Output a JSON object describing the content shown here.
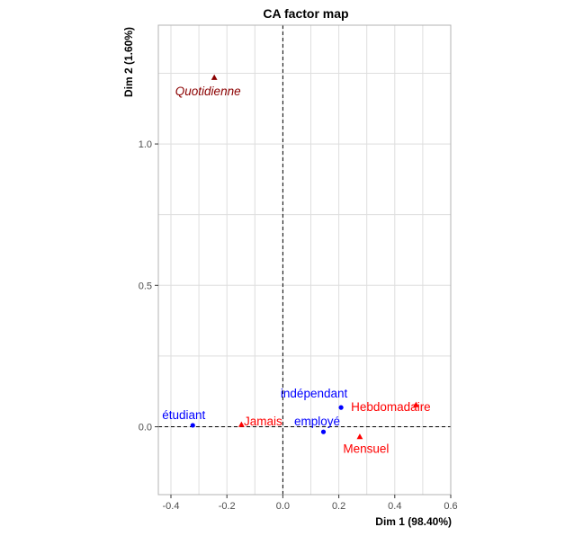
{
  "chart_data": {
    "type": "scatter",
    "title": "CA factor map",
    "xlabel": "Dim 1 (98.40%)",
    "ylabel": "Dim 2 (1.60%)",
    "xlim": [
      -0.445,
      0.6
    ],
    "ylim": [
      -0.24,
      1.42
    ],
    "x_ticks": [
      -0.4,
      -0.2,
      0.0,
      0.2,
      0.4,
      0.6
    ],
    "x_tick_labels": [
      "-0.4",
      "-0.2",
      "0.0",
      "0.2",
      "0.4",
      "0.6"
    ],
    "y_ticks": [
      0.0,
      0.5,
      1.0
    ],
    "y_tick_labels": [
      "0.0",
      "0.5",
      "1.0"
    ],
    "grid": true,
    "reference_lines": {
      "x": 0,
      "y": 0,
      "style": "dashed"
    },
    "colors": {
      "row": "#0000ff",
      "col": "#ff0000",
      "supp": "#8b0000",
      "grid": "#dedede",
      "panel_border": "#b3b3b3"
    },
    "series": [
      {
        "marker": "circle",
        "color": "#0000ff",
        "points": [
          {
            "label": "étudiant",
            "x": -0.322,
            "y": 0.005
          },
          {
            "label": "indépendant",
            "x": 0.208,
            "y": 0.068
          },
          {
            "label": "employé",
            "x": 0.145,
            "y": -0.018
          }
        ]
      },
      {
        "marker": "triangle",
        "color": "#ff0000",
        "points": [
          {
            "label": "Jamais",
            "x": -0.148,
            "y": 0.008
          },
          {
            "label": "Hebdomadaire",
            "x": 0.476,
            "y": 0.078
          },
          {
            "label": "Mensuel",
            "x": 0.275,
            "y": -0.035
          }
        ]
      },
      {
        "marker": "triangle",
        "color": "#8b0000",
        "italic": true,
        "points": [
          {
            "label": "Quotidienne",
            "x": -0.245,
            "y": 1.235
          }
        ]
      }
    ]
  }
}
